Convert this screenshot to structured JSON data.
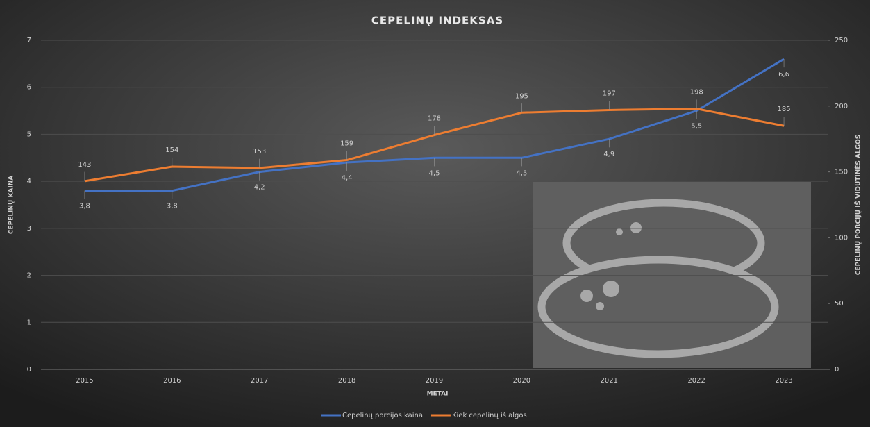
{
  "chart_data": {
    "type": "line",
    "title": "CEPELINŲ INDEKSAS",
    "x_label": "METAI",
    "y_label": "CEPELINŲ KAINA",
    "y2_label": "CEPELINŲ PORCIJŲ IŠ VIDUTINĖS ALGOS",
    "categories": [
      "2015",
      "2016",
      "2017",
      "2018",
      "2019",
      "2020",
      "2021",
      "2022",
      "2023"
    ],
    "series": [
      {
        "name": "Cepelinų porcijos kaina",
        "color": "#4472c4",
        "values": [
          3.8,
          3.8,
          4.2,
          4.4,
          4.5,
          4.5,
          4.9,
          5.5,
          6.6
        ],
        "value_labels": [
          "3,8",
          "3,8",
          "4,2",
          "4,4",
          "4,5",
          "4,5",
          "4,9",
          "5,5",
          "6,6"
        ]
      },
      {
        "name": "Kiek cepelinų iš algos",
        "color": "#ed7d31",
        "axis": "y2",
        "values": [
          143,
          154,
          153,
          159,
          178,
          195,
          197,
          198,
          185
        ]
      }
    ],
    "ylim": [
      0,
      7
    ],
    "yticks": [
      0,
      1,
      2,
      3,
      4,
      5,
      6,
      7
    ],
    "y2lim": [
      0,
      250
    ],
    "y2ticks": [
      0,
      50,
      100,
      150,
      200,
      250
    ],
    "grid": true
  }
}
